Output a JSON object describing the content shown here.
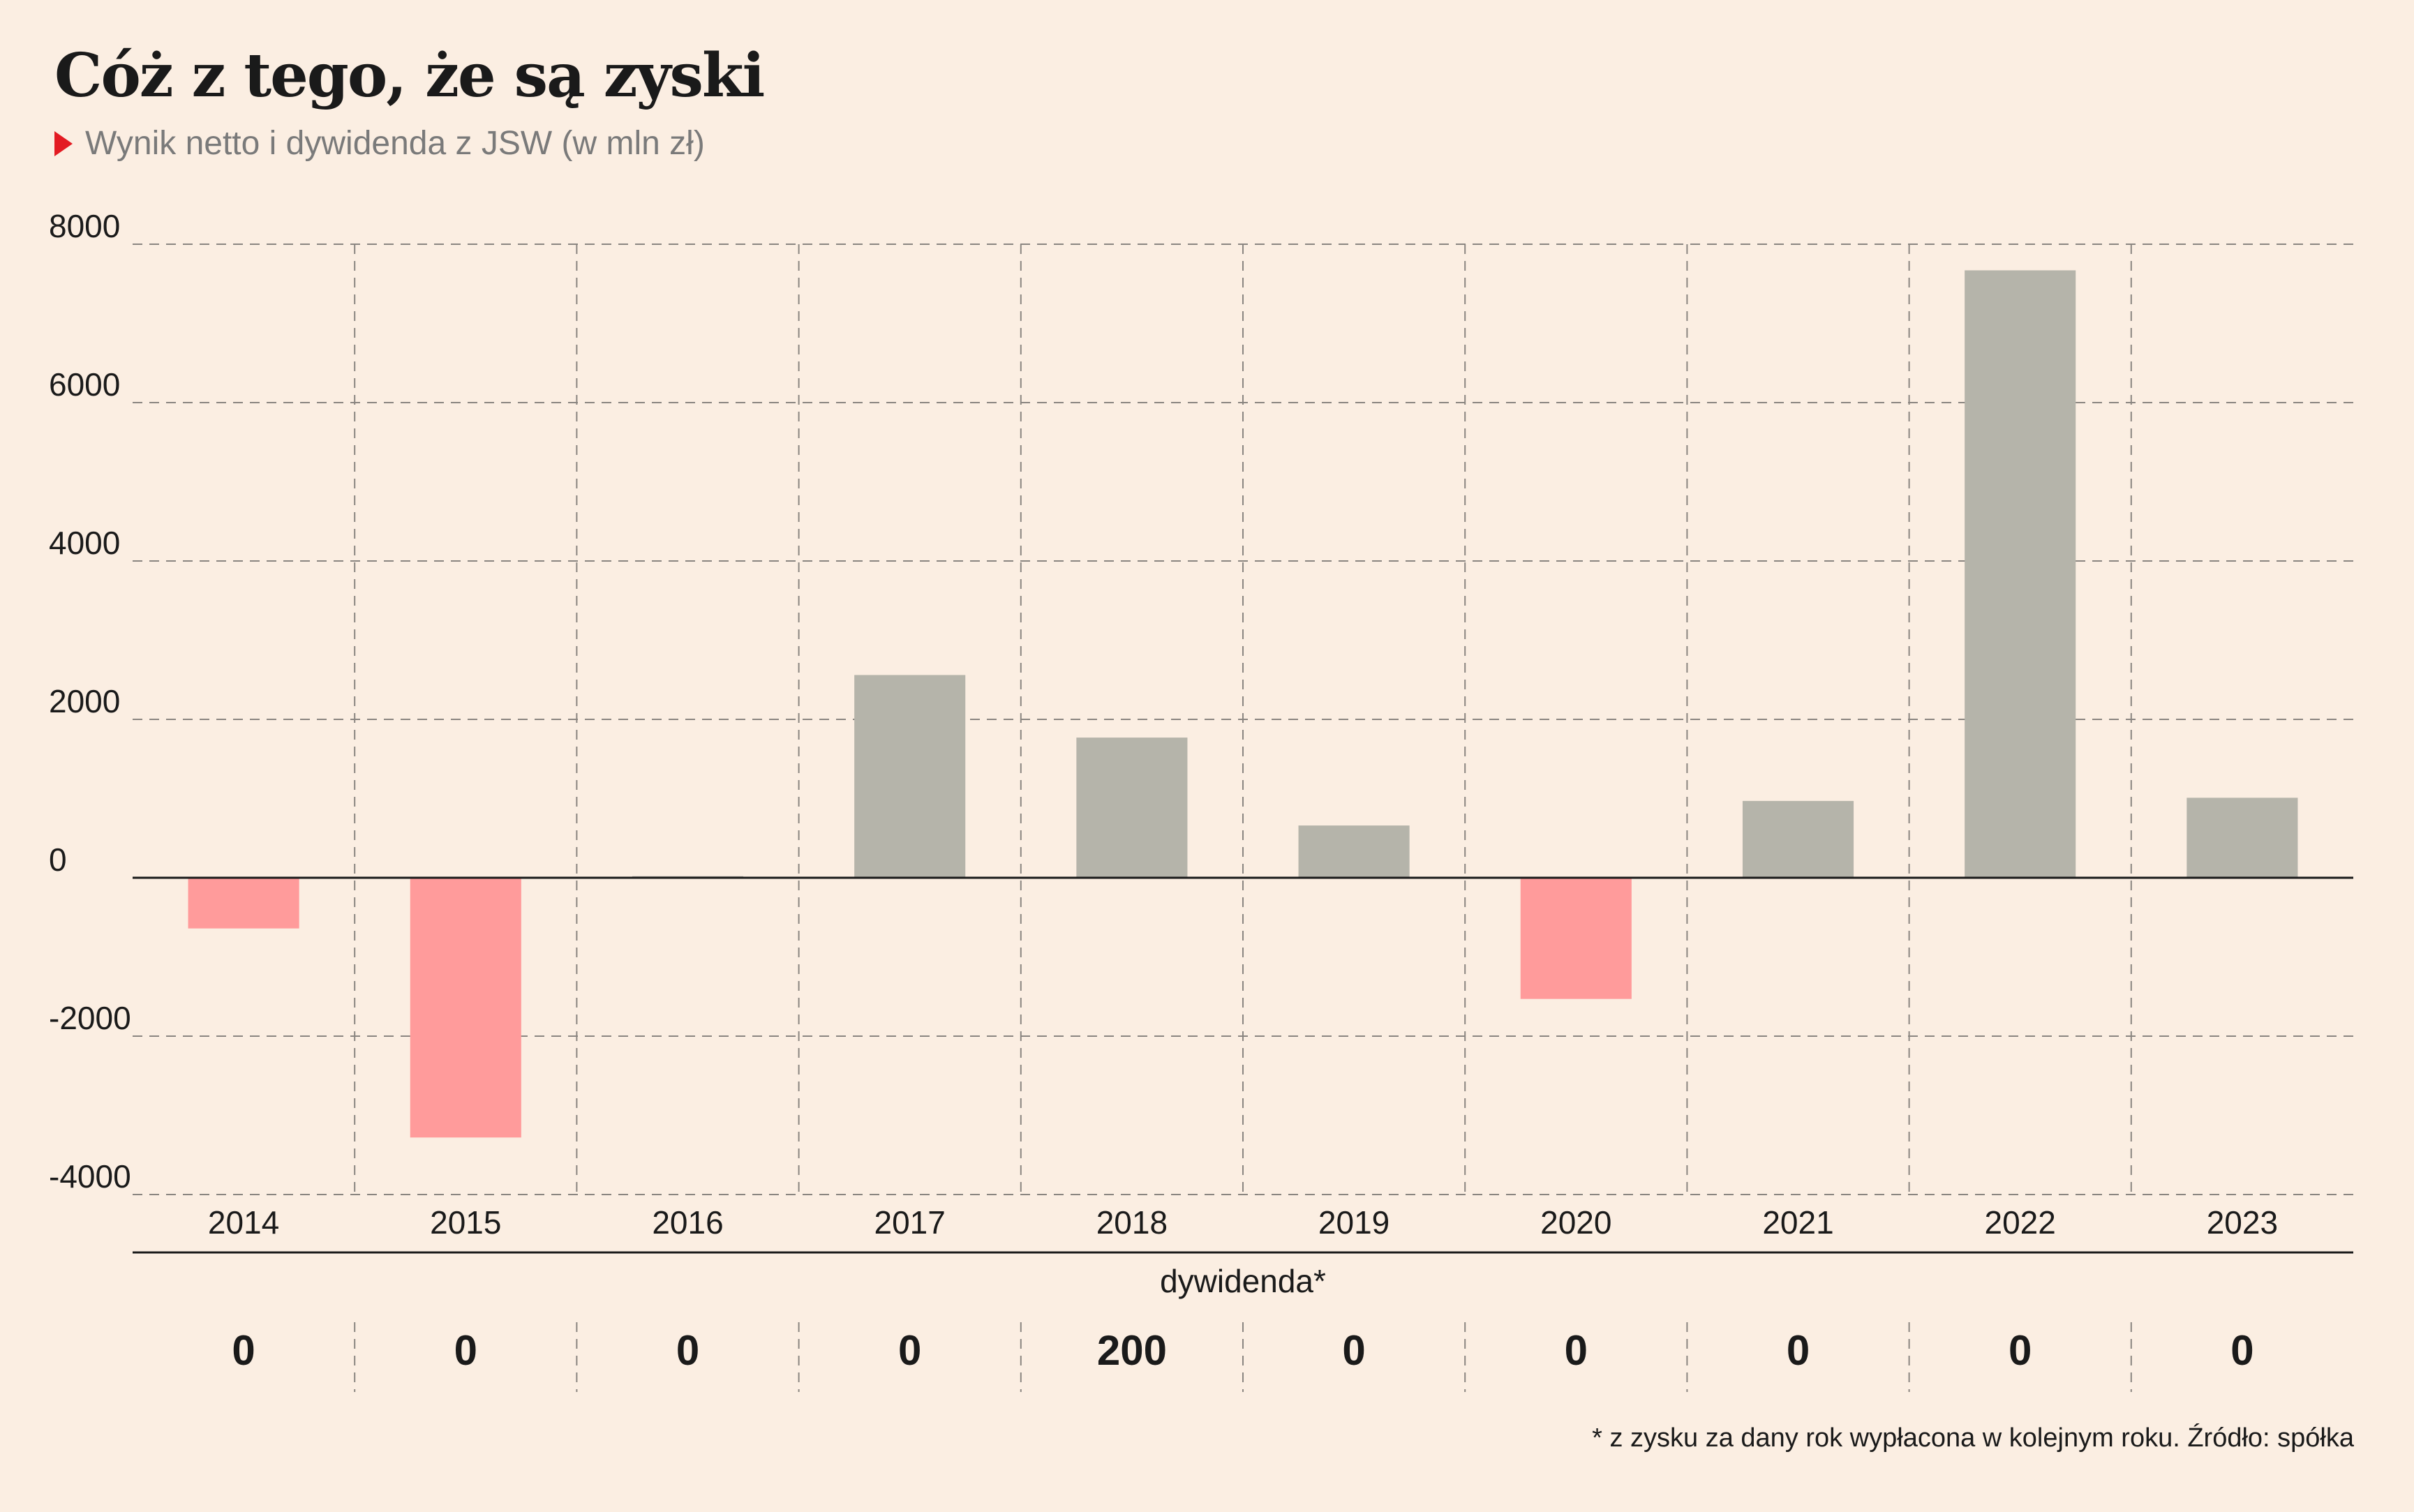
{
  "title": "Cóż z tego, że są zyski",
  "subtitle": "Wynik netto i dywidenda z JSW (w mln zł)",
  "footnote": "* z zysku za dany rok wypłacona w kolejnym roku. Źródło: spółka",
  "colors": {
    "positive": "#b5b4aa",
    "negative": "#ff9b9b",
    "marker": "#e31b23",
    "background": "#fbeee2"
  },
  "chart_data": {
    "type": "bar",
    "categories": [
      "2014",
      "2015",
      "2016",
      "2017",
      "2018",
      "2019",
      "2020",
      "2021",
      "2022",
      "2023"
    ],
    "values": [
      -640,
      -3280,
      20,
      2560,
      1770,
      660,
      -1530,
      970,
      7670,
      1010
    ],
    "ylim": [
      -4000,
      8000
    ],
    "yticks": [
      "8000",
      "6000",
      "4000",
      "2000",
      "0",
      "-2000",
      "-4000"
    ],
    "ytick_values": [
      8000,
      6000,
      4000,
      2000,
      0,
      -2000,
      -4000
    ],
    "grid": true,
    "dividend_label": "dywidenda*",
    "dividends": [
      "0",
      "0",
      "0",
      "0",
      "200",
      "0",
      "0",
      "0",
      "0",
      "0"
    ]
  }
}
